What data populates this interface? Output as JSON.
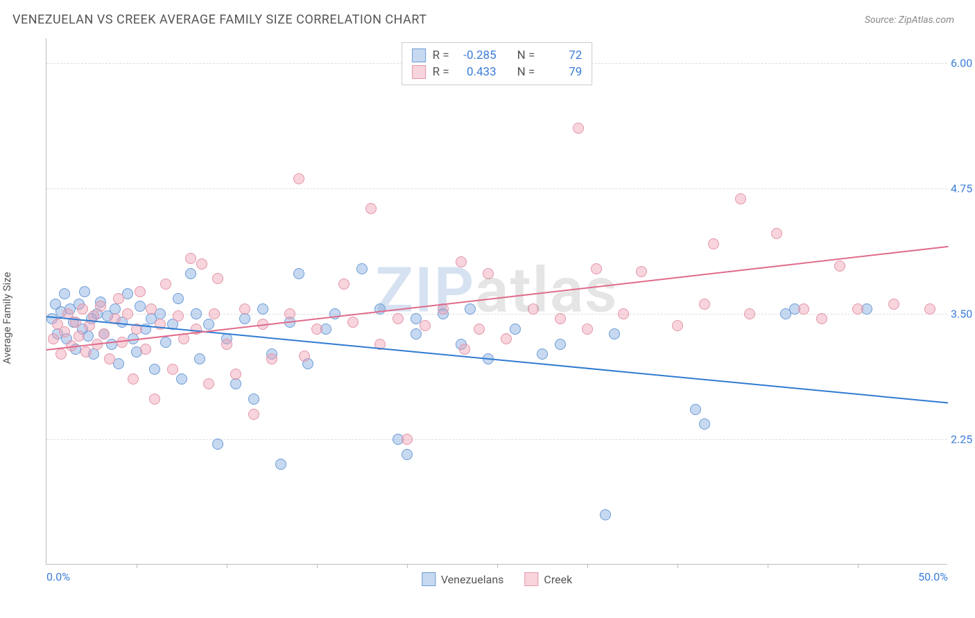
{
  "title": "VENEZUELAN VS CREEK AVERAGE FAMILY SIZE CORRELATION CHART",
  "source_label": "Source: ZipAtlas.com",
  "ylabel": "Average Family Size",
  "watermark": {
    "part1": "ZIP",
    "part2": "atlas"
  },
  "chart": {
    "type": "scatter",
    "xlim": [
      0,
      50
    ],
    "ylim": [
      1.0,
      6.25
    ],
    "x_tick_labels": {
      "start": "0.0%",
      "end": "50.0%"
    },
    "x_minor_ticks": [
      5,
      10,
      15,
      20,
      25,
      30,
      35,
      40,
      45
    ],
    "y_ticks": [
      2.25,
      3.5,
      4.75,
      6.0
    ],
    "grid_color": "#dddddd",
    "axis_color": "#bbbbbb",
    "background_color": "#ffffff",
    "tick_label_color": "#3b7dd8",
    "tick_fontsize": 16,
    "label_fontsize": 15,
    "title_fontsize": 18,
    "marker_radius": 8,
    "series": [
      {
        "name": "Venezuelans",
        "fill": "rgba(130,170,225,0.45)",
        "stroke": "#6b9bd6",
        "trend_color": "#2f7ad1",
        "R": "-0.285",
        "N": "72",
        "trend": {
          "x1": 0,
          "y1": 3.48,
          "x2": 50,
          "y2": 2.62
        },
        "points": [
          [
            0.3,
            3.45
          ],
          [
            0.5,
            3.6
          ],
          [
            0.6,
            3.3
          ],
          [
            0.8,
            3.52
          ],
          [
            1.0,
            3.7
          ],
          [
            1.1,
            3.25
          ],
          [
            1.3,
            3.55
          ],
          [
            1.5,
            3.42
          ],
          [
            1.6,
            3.15
          ],
          [
            1.8,
            3.6
          ],
          [
            2.0,
            3.35
          ],
          [
            2.1,
            3.72
          ],
          [
            2.3,
            3.28
          ],
          [
            2.5,
            3.45
          ],
          [
            2.6,
            3.1
          ],
          [
            2.8,
            3.5
          ],
          [
            3.0,
            3.62
          ],
          [
            3.2,
            3.3
          ],
          [
            3.4,
            3.48
          ],
          [
            3.6,
            3.2
          ],
          [
            3.8,
            3.55
          ],
          [
            4.0,
            3.0
          ],
          [
            4.2,
            3.42
          ],
          [
            4.5,
            3.7
          ],
          [
            4.8,
            3.25
          ],
          [
            5.0,
            3.12
          ],
          [
            5.2,
            3.58
          ],
          [
            5.5,
            3.35
          ],
          [
            5.8,
            3.45
          ],
          [
            6.0,
            2.95
          ],
          [
            6.3,
            3.5
          ],
          [
            6.6,
            3.22
          ],
          [
            7.0,
            3.4
          ],
          [
            7.3,
            3.65
          ],
          [
            7.5,
            2.85
          ],
          [
            8.0,
            3.9
          ],
          [
            8.3,
            3.5
          ],
          [
            8.5,
            3.05
          ],
          [
            9.0,
            3.4
          ],
          [
            9.5,
            2.2
          ],
          [
            10.0,
            3.25
          ],
          [
            10.5,
            2.8
          ],
          [
            11.0,
            3.45
          ],
          [
            11.5,
            2.65
          ],
          [
            12.0,
            3.55
          ],
          [
            12.5,
            3.1
          ],
          [
            13.0,
            2.0
          ],
          [
            13.5,
            3.42
          ],
          [
            14.0,
            3.9
          ],
          [
            14.5,
            3.0
          ],
          [
            15.5,
            3.35
          ],
          [
            16.0,
            3.5
          ],
          [
            17.5,
            3.95
          ],
          [
            18.5,
            3.55
          ],
          [
            19.5,
            2.25
          ],
          [
            20.0,
            2.1
          ],
          [
            20.5,
            3.3
          ],
          [
            22.0,
            3.5
          ],
          [
            23.0,
            3.2
          ],
          [
            24.5,
            3.05
          ],
          [
            26.0,
            3.35
          ],
          [
            27.5,
            3.1
          ],
          [
            31.0,
            1.5
          ],
          [
            31.5,
            3.3
          ],
          [
            36.0,
            2.55
          ],
          [
            36.5,
            2.4
          ],
          [
            41.0,
            3.5
          ],
          [
            41.5,
            3.55
          ],
          [
            45.5,
            3.55
          ],
          [
            20.5,
            3.45
          ],
          [
            23.5,
            3.55
          ],
          [
            28.5,
            3.2
          ]
        ]
      },
      {
        "name": "Creek",
        "fill": "rgba(240,160,180,0.45)",
        "stroke": "#e296a8",
        "trend_color": "#e06a8a",
        "R": "0.433",
        "N": "79",
        "trend": {
          "x1": 0,
          "y1": 3.15,
          "x2": 50,
          "y2": 4.18
        },
        "points": [
          [
            0.4,
            3.25
          ],
          [
            0.6,
            3.4
          ],
          [
            0.8,
            3.1
          ],
          [
            1.0,
            3.32
          ],
          [
            1.2,
            3.5
          ],
          [
            1.4,
            3.18
          ],
          [
            1.6,
            3.42
          ],
          [
            1.8,
            3.28
          ],
          [
            2.0,
            3.55
          ],
          [
            2.2,
            3.12
          ],
          [
            2.4,
            3.38
          ],
          [
            2.6,
            3.48
          ],
          [
            2.8,
            3.2
          ],
          [
            3.0,
            3.58
          ],
          [
            3.2,
            3.3
          ],
          [
            3.5,
            3.05
          ],
          [
            3.8,
            3.45
          ],
          [
            4.0,
            3.65
          ],
          [
            4.2,
            3.22
          ],
          [
            4.5,
            3.5
          ],
          [
            4.8,
            2.85
          ],
          [
            5.0,
            3.35
          ],
          [
            5.2,
            3.72
          ],
          [
            5.5,
            3.15
          ],
          [
            5.8,
            3.55
          ],
          [
            6.0,
            2.65
          ],
          [
            6.3,
            3.4
          ],
          [
            6.6,
            3.8
          ],
          [
            7.0,
            2.95
          ],
          [
            7.3,
            3.48
          ],
          [
            7.6,
            3.25
          ],
          [
            8.0,
            4.05
          ],
          [
            8.3,
            3.35
          ],
          [
            8.6,
            4.0
          ],
          [
            9.0,
            2.8
          ],
          [
            9.3,
            3.5
          ],
          [
            9.5,
            3.85
          ],
          [
            10.0,
            3.2
          ],
          [
            10.5,
            2.9
          ],
          [
            11.0,
            3.55
          ],
          [
            11.5,
            2.5
          ],
          [
            12.0,
            3.4
          ],
          [
            12.5,
            3.05
          ],
          [
            13.5,
            3.5
          ],
          [
            14.0,
            4.85
          ],
          [
            14.3,
            3.08
          ],
          [
            15.0,
            3.35
          ],
          [
            16.5,
            3.8
          ],
          [
            17.0,
            3.42
          ],
          [
            18.0,
            4.55
          ],
          [
            18.5,
            3.2
          ],
          [
            19.5,
            3.45
          ],
          [
            20.0,
            2.25
          ],
          [
            21.0,
            3.38
          ],
          [
            22.0,
            3.55
          ],
          [
            23.0,
            4.02
          ],
          [
            23.2,
            3.15
          ],
          [
            24.0,
            3.35
          ],
          [
            24.5,
            3.9
          ],
          [
            25.5,
            3.25
          ],
          [
            27.0,
            3.55
          ],
          [
            28.5,
            3.45
          ],
          [
            29.5,
            5.35
          ],
          [
            30.0,
            3.35
          ],
          [
            30.5,
            3.95
          ],
          [
            32.0,
            3.5
          ],
          [
            33.0,
            3.92
          ],
          [
            35.0,
            3.38
          ],
          [
            36.5,
            3.6
          ],
          [
            37.0,
            4.2
          ],
          [
            38.5,
            4.65
          ],
          [
            39.0,
            3.5
          ],
          [
            40.5,
            4.3
          ],
          [
            42.0,
            3.55
          ],
          [
            43.0,
            3.45
          ],
          [
            44.0,
            3.98
          ],
          [
            45.0,
            3.55
          ],
          [
            47.0,
            3.6
          ],
          [
            49.0,
            3.55
          ]
        ]
      }
    ]
  },
  "legend": {
    "series1_label": "Venezuelans",
    "series2_label": "Creek"
  },
  "statbox": {
    "r_label": "R =",
    "n_label": "N ="
  }
}
